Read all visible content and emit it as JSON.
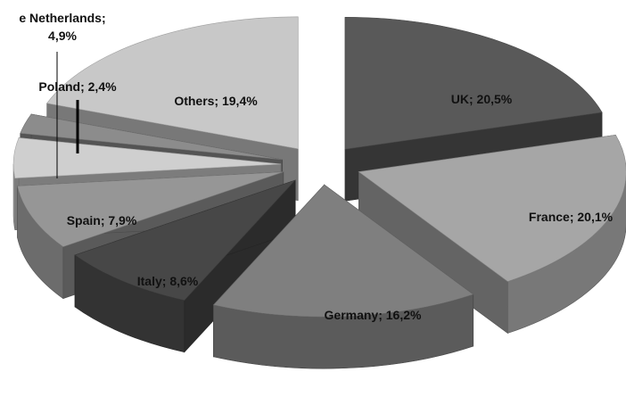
{
  "chart_data": {
    "type": "pie",
    "title": "",
    "categories": [
      "UK",
      "France",
      "Germany",
      "Italy",
      "Spain",
      "The Netherlands",
      "Poland",
      "Others"
    ],
    "values": [
      20.5,
      20.1,
      16.2,
      8.6,
      7.9,
      4.9,
      2.4,
      19.4
    ],
    "labels": [
      "UK; 20,5%",
      "France; 20,1%",
      "Germany; 16,2%",
      "Italy; 8,6%",
      "Spain; 7,9%",
      "e Netherlands;",
      "Poland; 2,4%",
      "Others; 19,4%"
    ],
    "label_line2": [
      "",
      "",
      "",
      "",
      "",
      "4,9%",
      "",
      ""
    ],
    "colors": [
      "#595959",
      "#a6a6a6",
      "#7f7f7f",
      "#474747",
      "#969696",
      "#cfcfcf",
      "#8c8c8c",
      "#c8c8c8"
    ],
    "exploded": true,
    "three_d": true,
    "legend": "none"
  }
}
